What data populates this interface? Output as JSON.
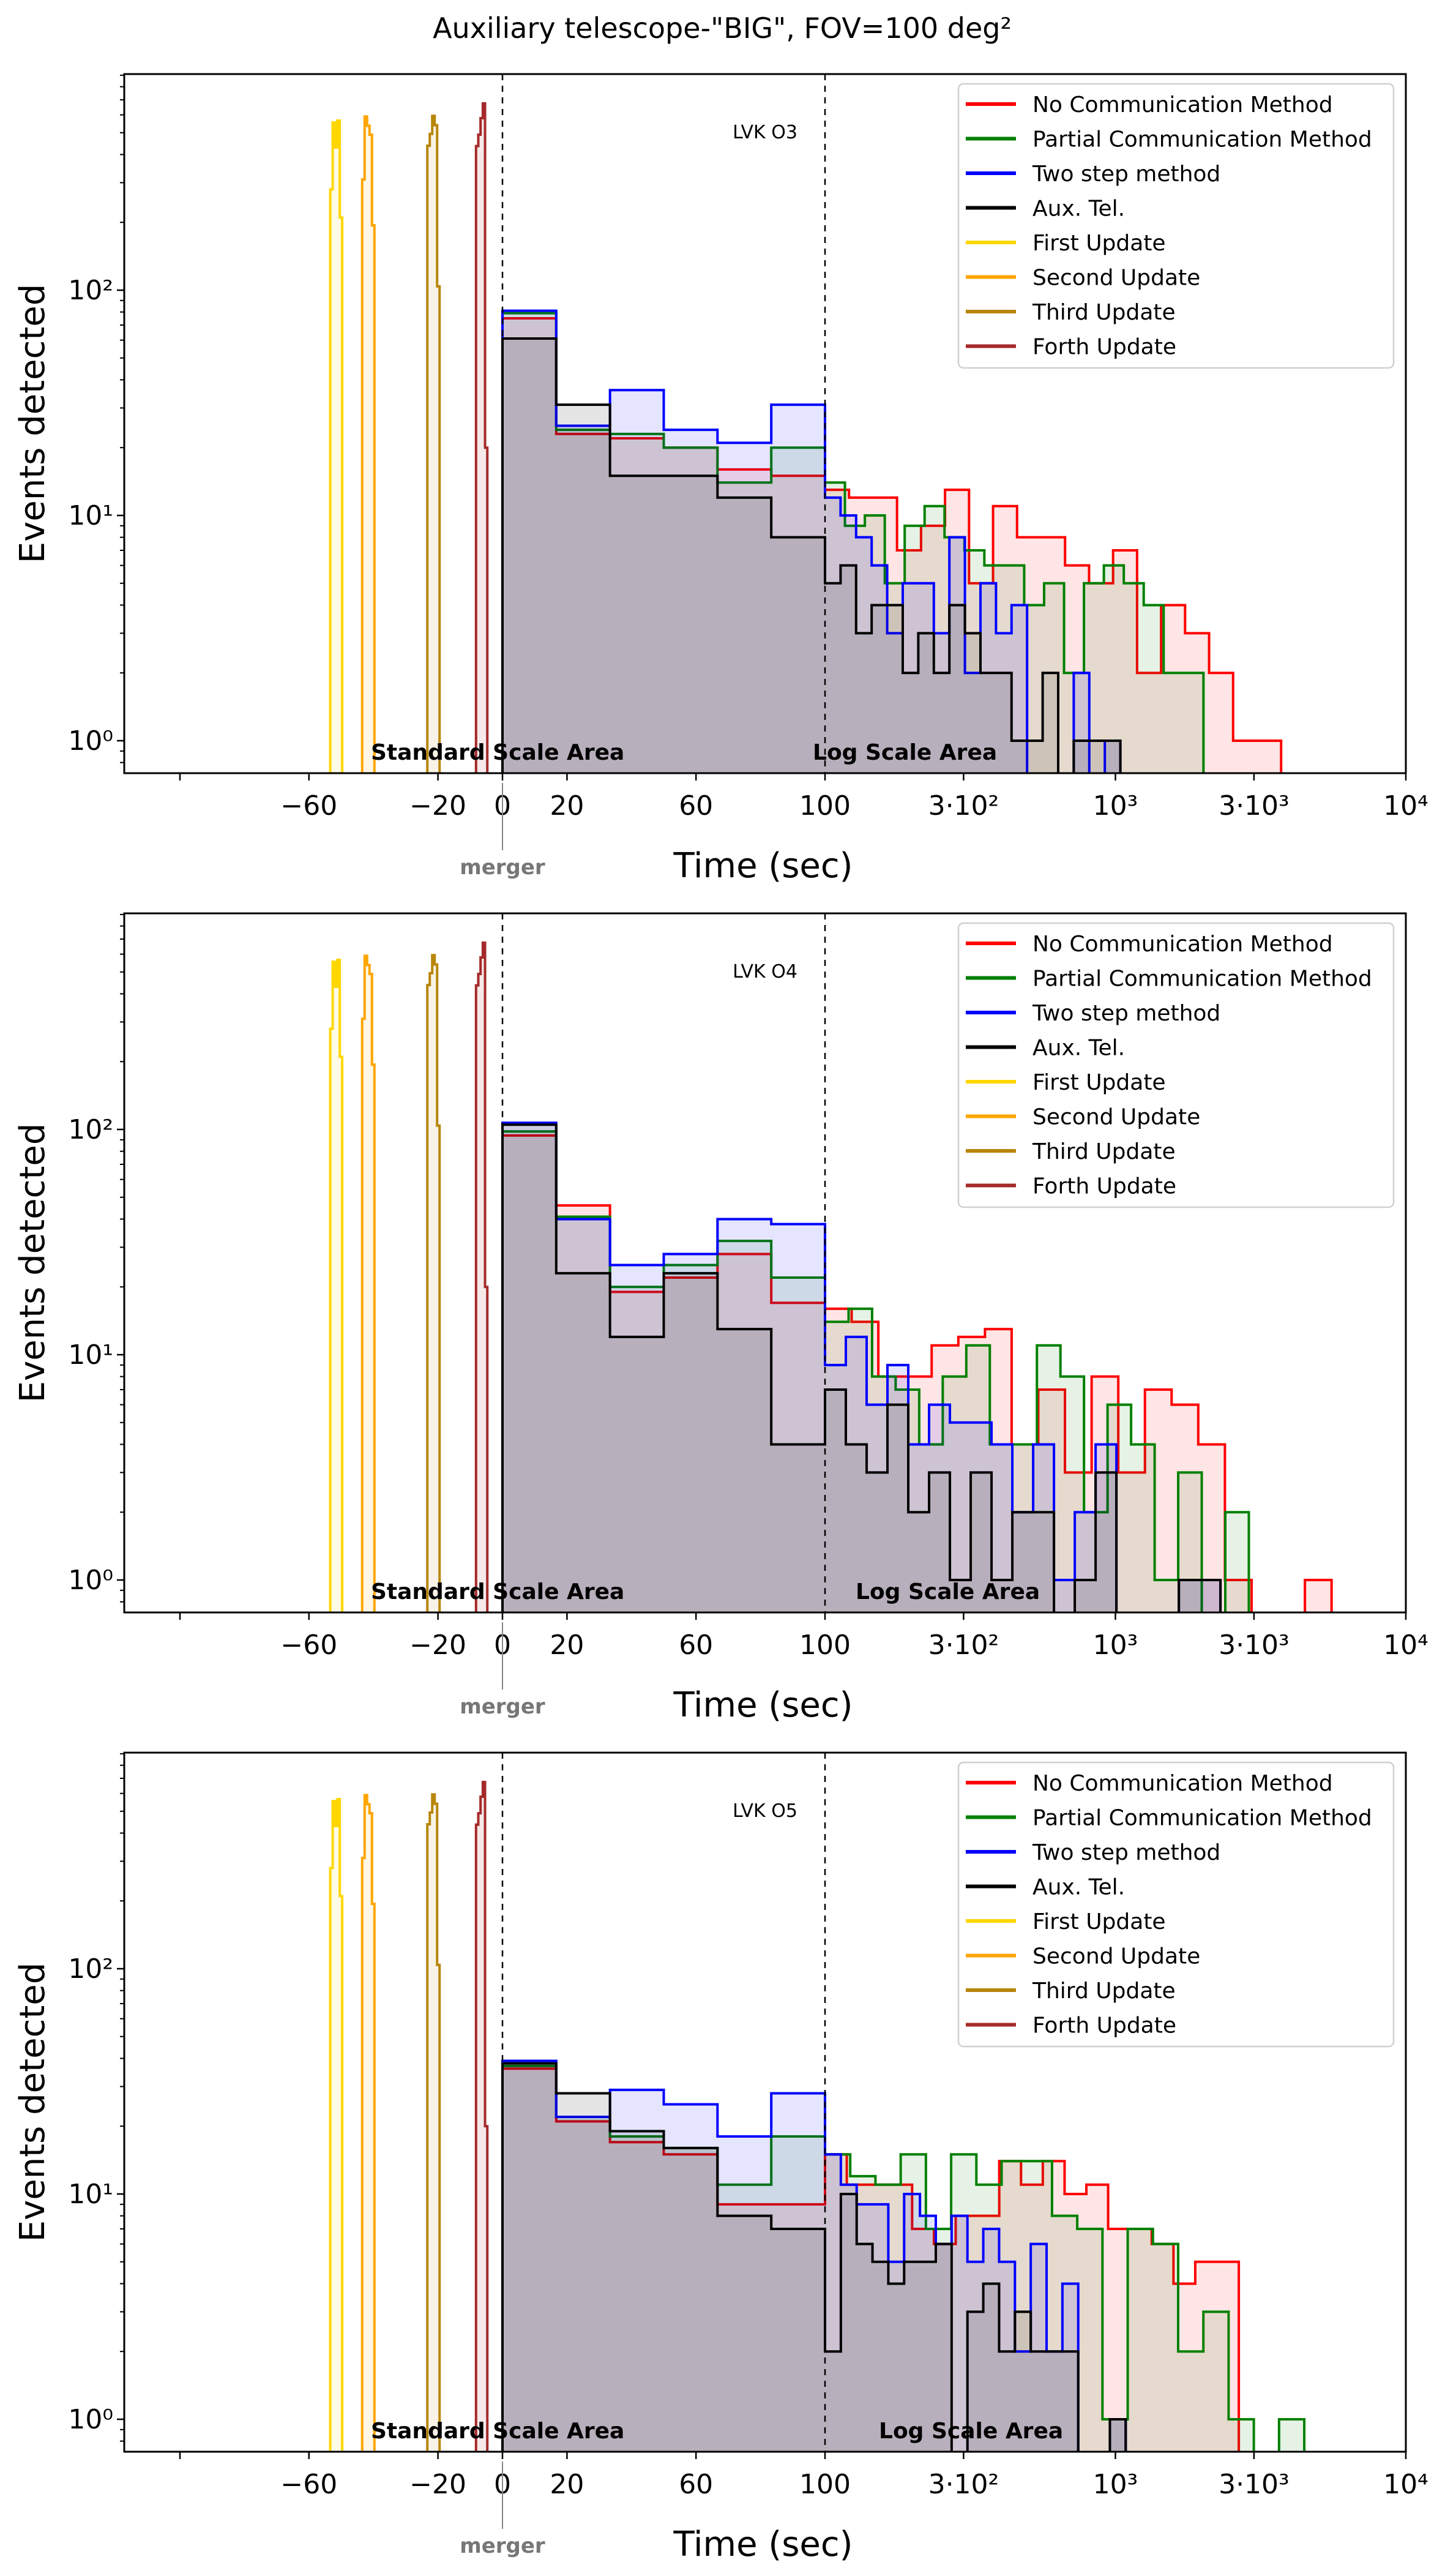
{
  "title": "Auxiliary telescope-\"BIG\", FOV=100 deg²",
  "legend": [
    {
      "key": "no_comm",
      "label": "No Communication Method",
      "color": "#ff0000"
    },
    {
      "key": "partial",
      "label": "Partial Communication Method",
      "color": "#008000"
    },
    {
      "key": "two_step",
      "label": "Two step method",
      "color": "#0000ff"
    },
    {
      "key": "aux",
      "label": "Aux. Tel.",
      "color": "#000000"
    },
    {
      "key": "first",
      "label": "First Update",
      "color": "#ffd700"
    },
    {
      "key": "second",
      "label": "Second Update",
      "color": "#ffa500"
    },
    {
      "key": "third",
      "label": "Third Update",
      "color": "#b8860b"
    },
    {
      "key": "forth",
      "label": "Forth Update",
      "color": "#a52a2a"
    }
  ],
  "annotations": {
    "standard": "Standard Scale Area",
    "log": "Log Scale Area",
    "merger": "merger"
  },
  "chart_data": [
    {
      "type": "histogram",
      "panel_label": "LVK O3",
      "xlabel": "Time (sec)",
      "ylabel": "Events detected",
      "x_scale": "linear from -117 to 100, log from 100 to 10^4",
      "xlim": [
        -117,
        10000
      ],
      "y_scale": "log",
      "ylim": [
        0.72,
        930
      ],
      "xticks": [
        {
          "value": -100,
          "label": ""
        },
        {
          "value": -60,
          "label": "−60"
        },
        {
          "value": -20,
          "label": "−20"
        },
        {
          "value": 0,
          "label": "0"
        },
        {
          "value": 20,
          "label": "20"
        },
        {
          "value": 60,
          "label": "60"
        },
        {
          "value": 100,
          "label": "100"
        },
        {
          "value": 300,
          "label": "3·10²"
        },
        {
          "value": 1000,
          "label": "10³"
        },
        {
          "value": 3000,
          "label": "3·10³"
        },
        {
          "value": 10000,
          "label": "10⁴"
        }
      ],
      "yticks": [
        {
          "value": 1,
          "label": "10⁰"
        },
        {
          "value": 10,
          "label": "10¹"
        },
        {
          "value": 100,
          "label": "10²"
        }
      ],
      "vlines": [
        0,
        100
      ],
      "legend_position": "top-right",
      "series": [
        {
          "key": "no_comm",
          "linear_bins": {
            "min": 0,
            "max": 100,
            "counts": [
              75,
              23,
              22,
              20,
              16,
              15
            ]
          },
          "log_bins": {
            "min": 100,
            "max": 3720,
            "counts": [
              13,
              12,
              12,
              7,
              9,
              13,
              5,
              11,
              8,
              8,
              6,
              5,
              7,
              2,
              4,
              3,
              2,
              1,
              1
            ]
          }
        },
        {
          "key": "partial",
          "linear_bins": {
            "min": 0,
            "max": 100,
            "counts": [
              79,
              24,
              23,
              20,
              14,
              20
            ]
          },
          "log_bins": {
            "min": 100,
            "max": 2010,
            "counts": [
              14,
              9,
              10,
              5,
              9,
              11,
              8,
              7,
              6,
              6,
              4,
              5,
              2,
              5,
              6,
              5,
              4,
              2,
              2
            ]
          }
        },
        {
          "key": "two_step",
          "linear_bins": {
            "min": 0,
            "max": 100,
            "counts": [
              81,
              25,
              36,
              24,
              21,
              31
            ]
          },
          "log_bins": {
            "min": 100,
            "max": 1040,
            "counts": [
              12,
              10,
              8,
              6,
              3,
              5,
              5,
              3,
              8,
              2,
              5,
              3,
              4,
              0,
              0,
              0,
              2,
              0,
              1
            ]
          }
        },
        {
          "key": "aux",
          "linear_bins": {
            "min": 0,
            "max": 100,
            "counts": [
              61,
              31,
              15,
              15,
              12,
              8
            ]
          },
          "log_bins": {
            "min": 100,
            "max": 1040,
            "counts": [
              5,
              6,
              3,
              4,
              4,
              2,
              3,
              2,
              4,
              3,
              2,
              2,
              1,
              1,
              2,
              0,
              1,
              1,
              1
            ]
          }
        }
      ],
      "updates": [
        {
          "key": "first",
          "range": [
            -53.4,
            -49.7
          ],
          "counts": [
            280,
            555,
            430,
            566,
            210
          ]
        },
        {
          "key": "second",
          "range": [
            -43.5,
            -39.7
          ],
          "counts": [
            310,
            590,
            537,
            490,
            194
          ]
        },
        {
          "key": "third",
          "range": [
            -23.3,
            -19.5
          ],
          "counts": [
            438,
            494,
            594,
            540,
            104
          ]
        },
        {
          "key": "forth",
          "range": [
            -8.2,
            -4.7
          ],
          "counts": [
            436,
            490,
            580,
            674,
            20
          ]
        }
      ]
    },
    {
      "type": "histogram",
      "panel_label": "LVK O4",
      "xlabel": "Time (sec)",
      "ylabel": "Events detected",
      "x_scale": "linear from -117 to 100, log from 100 to 10^4",
      "xlim": [
        -117,
        10000
      ],
      "y_scale": "log",
      "ylim": [
        0.72,
        930
      ],
      "xticks": [
        {
          "value": -100,
          "label": ""
        },
        {
          "value": -60,
          "label": "−60"
        },
        {
          "value": -20,
          "label": "−20"
        },
        {
          "value": 0,
          "label": "0"
        },
        {
          "value": 20,
          "label": "20"
        },
        {
          "value": 60,
          "label": "60"
        },
        {
          "value": 100,
          "label": "100"
        },
        {
          "value": 300,
          "label": "3·10²"
        },
        {
          "value": 1000,
          "label": "10³"
        },
        {
          "value": 3000,
          "label": "3·10³"
        },
        {
          "value": 10000,
          "label": "10⁴"
        }
      ],
      "yticks": [
        {
          "value": 1,
          "label": "10⁰"
        },
        {
          "value": 10,
          "label": "10¹"
        },
        {
          "value": 100,
          "label": "10²"
        }
      ],
      "vlines": [
        0,
        100
      ],
      "legend_position": "top-right",
      "series": [
        {
          "key": "no_comm",
          "linear_bins": {
            "min": 0,
            "max": 100,
            "counts": [
              94,
              46,
              19,
              22,
              28,
              17
            ]
          },
          "log_bins": {
            "min": 100,
            "max": 5550,
            "counts": [
              16,
              14,
              8,
              8,
              11,
              12,
              13,
              4,
              7,
              3,
              8,
              3,
              7,
              6,
              4,
              1,
              0,
              0,
              1
            ]
          }
        },
        {
          "key": "partial",
          "linear_bins": {
            "min": 0,
            "max": 100,
            "counts": [
              98,
              41,
              20,
              25,
              32,
              22
            ]
          },
          "log_bins": {
            "min": 100,
            "max": 2880,
            "counts": [
              14,
              16,
              8,
              7,
              4,
              8,
              11,
              4,
              4,
              11,
              8,
              2,
              6,
              4,
              1,
              3,
              0,
              2
            ]
          }
        },
        {
          "key": "two_step",
          "linear_bins": {
            "min": 0,
            "max": 100,
            "counts": [
              107,
              40,
              25,
              28,
              40,
              38
            ]
          },
          "log_bins": {
            "min": 100,
            "max": 2300,
            "counts": [
              9,
              12,
              6,
              9,
              4,
              6,
              5,
              5,
              4,
              2,
              4,
              1,
              2,
              4,
              0,
              0,
              0,
              1,
              1
            ]
          }
        },
        {
          "key": "aux",
          "linear_bins": {
            "min": 0,
            "max": 100,
            "counts": [
              105,
              23,
              12,
              23,
              13,
              4
            ]
          },
          "log_bins": {
            "min": 100,
            "max": 2300,
            "counts": [
              7,
              4,
              3,
              6,
              2,
              3,
              1,
              3,
              1,
              2,
              2,
              0,
              1,
              3,
              0,
              0,
              0,
              1,
              1
            ]
          }
        }
      ],
      "updates": [
        {
          "key": "first",
          "range": [
            -53.4,
            -49.7
          ],
          "counts": [
            280,
            555,
            430,
            566,
            210
          ]
        },
        {
          "key": "second",
          "range": [
            -43.5,
            -39.7
          ],
          "counts": [
            310,
            590,
            537,
            490,
            194
          ]
        },
        {
          "key": "third",
          "range": [
            -23.3,
            -19.5
          ],
          "counts": [
            438,
            494,
            594,
            540,
            104
          ]
        },
        {
          "key": "forth",
          "range": [
            -8.2,
            -4.7
          ],
          "counts": [
            436,
            490,
            580,
            674,
            20
          ]
        }
      ]
    },
    {
      "type": "histogram",
      "panel_label": "LVK O5",
      "xlabel": "Time (sec)",
      "ylabel": "Events detected",
      "x_scale": "linear from -117 to 100, log from 100 to 10^4",
      "xlim": [
        -117,
        10000
      ],
      "y_scale": "log",
      "ylim": [
        0.72,
        930
      ],
      "xticks": [
        {
          "value": -100,
          "label": ""
        },
        {
          "value": -60,
          "label": "−60"
        },
        {
          "value": -20,
          "label": "−20"
        },
        {
          "value": 0,
          "label": "0"
        },
        {
          "value": 20,
          "label": "20"
        },
        {
          "value": 60,
          "label": "60"
        },
        {
          "value": 100,
          "label": "100"
        },
        {
          "value": 300,
          "label": "3·10²"
        },
        {
          "value": 1000,
          "label": "10³"
        },
        {
          "value": 3000,
          "label": "3·10³"
        },
        {
          "value": 10000,
          "label": "10⁴"
        }
      ],
      "yticks": [
        {
          "value": 1,
          "label": "10⁰"
        },
        {
          "value": 10,
          "label": "10¹"
        },
        {
          "value": 100,
          "label": "10²"
        }
      ],
      "vlines": [
        0,
        100
      ],
      "legend_position": "top-right",
      "series": [
        {
          "key": "no_comm",
          "linear_bins": {
            "min": 0,
            "max": 100,
            "counts": [
              36,
              21,
              17,
              15,
              9,
              9
            ]
          },
          "log_bins": {
            "min": 100,
            "max": 2660,
            "counts": [
              15,
              11,
              11,
              11,
              7,
              6,
              8,
              8,
              14,
              11,
              14,
              10,
              11,
              7,
              7,
              6,
              4,
              5,
              5
            ]
          }
        },
        {
          "key": "partial",
          "linear_bins": {
            "min": 0,
            "max": 100,
            "counts": [
              37,
              22,
              18,
              16,
              11,
              18
            ]
          },
          "log_bins": {
            "min": 100,
            "max": 4470,
            "counts": [
              15,
              12,
              11,
              15,
              7,
              15,
              11,
              14,
              14,
              8,
              7,
              1,
              7,
              6,
              2,
              3,
              1,
              0,
              1
            ]
          }
        },
        {
          "key": "two_step",
          "linear_bins": {
            "min": 0,
            "max": 100,
            "counts": [
              39,
              22,
              29,
              25,
              18,
              28
            ]
          },
          "log_bins": {
            "min": 100,
            "max": 1085,
            "counts": [
              15,
              11,
              9,
              9,
              5,
              10,
              8,
              6,
              8,
              5,
              7,
              5,
              2,
              6,
              2,
              4,
              0,
              0,
              1
            ]
          }
        },
        {
          "key": "aux",
          "linear_bins": {
            "min": 0,
            "max": 100,
            "counts": [
              38,
              28,
              19,
              16,
              8,
              7
            ]
          },
          "log_bins": {
            "min": 100,
            "max": 1085,
            "counts": [
              2,
              10,
              6,
              5,
              4,
              5,
              5,
              6,
              0,
              3,
              4,
              2,
              3,
              2,
              2,
              2,
              0,
              0,
              1
            ]
          }
        }
      ],
      "updates": [
        {
          "key": "first",
          "range": [
            -53.4,
            -49.7
          ],
          "counts": [
            280,
            555,
            430,
            566,
            210
          ]
        },
        {
          "key": "second",
          "range": [
            -43.5,
            -39.7
          ],
          "counts": [
            310,
            590,
            537,
            490,
            194
          ]
        },
        {
          "key": "third",
          "range": [
            -23.3,
            -19.5
          ],
          "counts": [
            438,
            494,
            594,
            540,
            104
          ]
        },
        {
          "key": "forth",
          "range": [
            -8.2,
            -4.7
          ],
          "counts": [
            436,
            490,
            580,
            674,
            20
          ]
        }
      ]
    }
  ]
}
